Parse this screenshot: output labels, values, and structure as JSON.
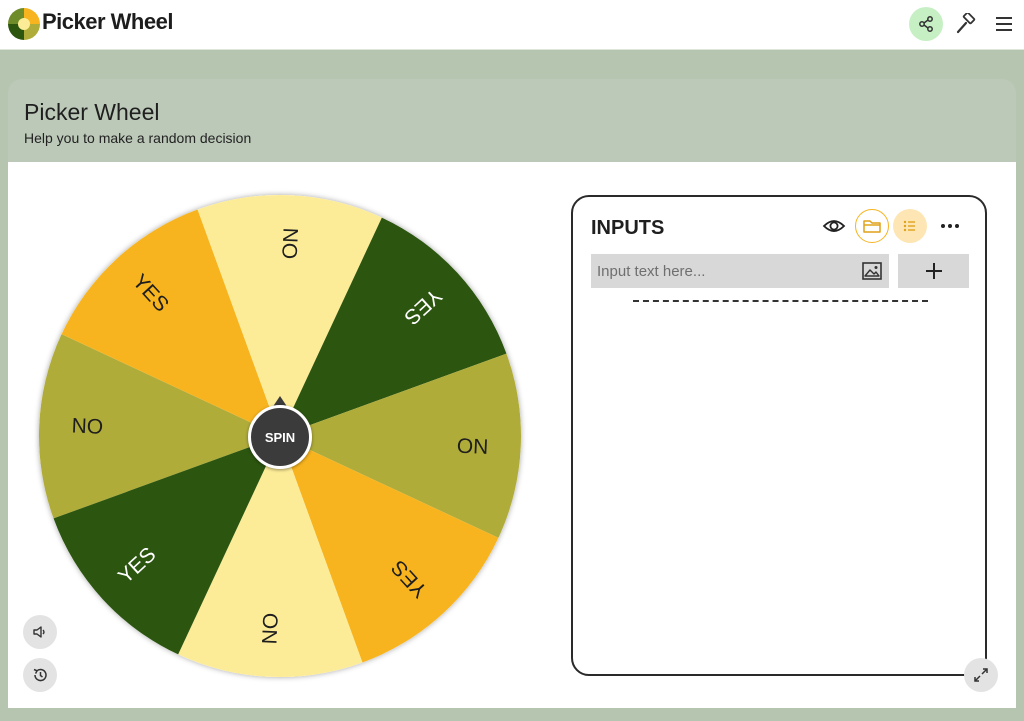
{
  "app": {
    "brand": "Picker Wheel"
  },
  "header": {
    "title": "Picker Wheel",
    "subtitle": "Help you to make a random decision"
  },
  "topbar_icons": [
    "share-icon",
    "tools-icon",
    "hamburger-menu-icon"
  ],
  "wheel": {
    "spin_label": "SPIN",
    "segments": [
      {
        "label": "NO",
        "color": "#b0ac3a"
      },
      {
        "label": "YES",
        "color": "#f7b41f"
      },
      {
        "label": "NO",
        "color": "#fdec97"
      },
      {
        "label": "YES",
        "color": "#2c5610"
      },
      {
        "label": "NO",
        "color": "#b0ac3a"
      },
      {
        "label": "YES",
        "color": "#f7b41f"
      },
      {
        "label": "NO",
        "color": "#fdec97"
      },
      {
        "label": "YES",
        "color": "#2c5610"
      }
    ]
  },
  "inputs": {
    "title": "INPUTS",
    "placeholder": "Input text here...",
    "icons": [
      "eye-icon",
      "folder-icon",
      "list-icon",
      "more-icon"
    ]
  },
  "colors": {
    "accent_green": "#c6efc4",
    "accent_yellow": "#f7b41f",
    "page_bg": "#b6c5af"
  }
}
